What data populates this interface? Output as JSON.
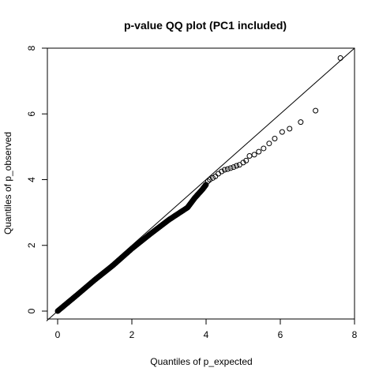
{
  "chart_data": {
    "type": "scatter",
    "title": "p-value QQ plot (PC1 included)",
    "xlabel": "Quantiles of p_expected",
    "ylabel": "Quantiles of p_observed",
    "xlim": [
      0,
      8
    ],
    "ylim": [
      0,
      8
    ],
    "xticks": [
      "0",
      "2",
      "4",
      "6",
      "8"
    ],
    "yticks": [
      "0",
      "2",
      "4",
      "6",
      "8"
    ],
    "grid": false,
    "reference_line": {
      "slope": 1,
      "intercept": 0
    },
    "colors": {
      "points": "#000000",
      "line": "#000000",
      "frame": "#000000"
    },
    "bulk": [
      [
        0.0,
        0.0
      ],
      [
        0.5,
        0.47
      ],
      [
        1.0,
        0.95
      ],
      [
        1.5,
        1.4
      ],
      [
        2.0,
        1.9
      ],
      [
        2.5,
        2.35
      ],
      [
        3.0,
        2.78
      ],
      [
        3.5,
        3.15
      ],
      [
        3.7,
        3.45
      ],
      [
        3.9,
        3.7
      ],
      [
        4.0,
        3.85
      ]
    ],
    "tail_points": [
      [
        4.05,
        3.95
      ],
      [
        4.1,
        4.0
      ],
      [
        4.18,
        4.05
      ],
      [
        4.25,
        4.1
      ],
      [
        4.33,
        4.18
      ],
      [
        4.42,
        4.25
      ],
      [
        4.5,
        4.3
      ],
      [
        4.58,
        4.32
      ],
      [
        4.66,
        4.35
      ],
      [
        4.74,
        4.38
      ],
      [
        4.82,
        4.42
      ],
      [
        4.9,
        4.45
      ],
      [
        5.0,
        4.52
      ],
      [
        5.08,
        4.58
      ],
      [
        5.17,
        4.72
      ],
      [
        5.3,
        4.76
      ],
      [
        5.42,
        4.85
      ],
      [
        5.55,
        4.95
      ],
      [
        5.7,
        5.1
      ],
      [
        5.85,
        5.25
      ],
      [
        6.05,
        5.45
      ],
      [
        6.25,
        5.55
      ],
      [
        6.55,
        5.75
      ],
      [
        6.95,
        6.1
      ],
      [
        7.62,
        7.7
      ]
    ]
  }
}
